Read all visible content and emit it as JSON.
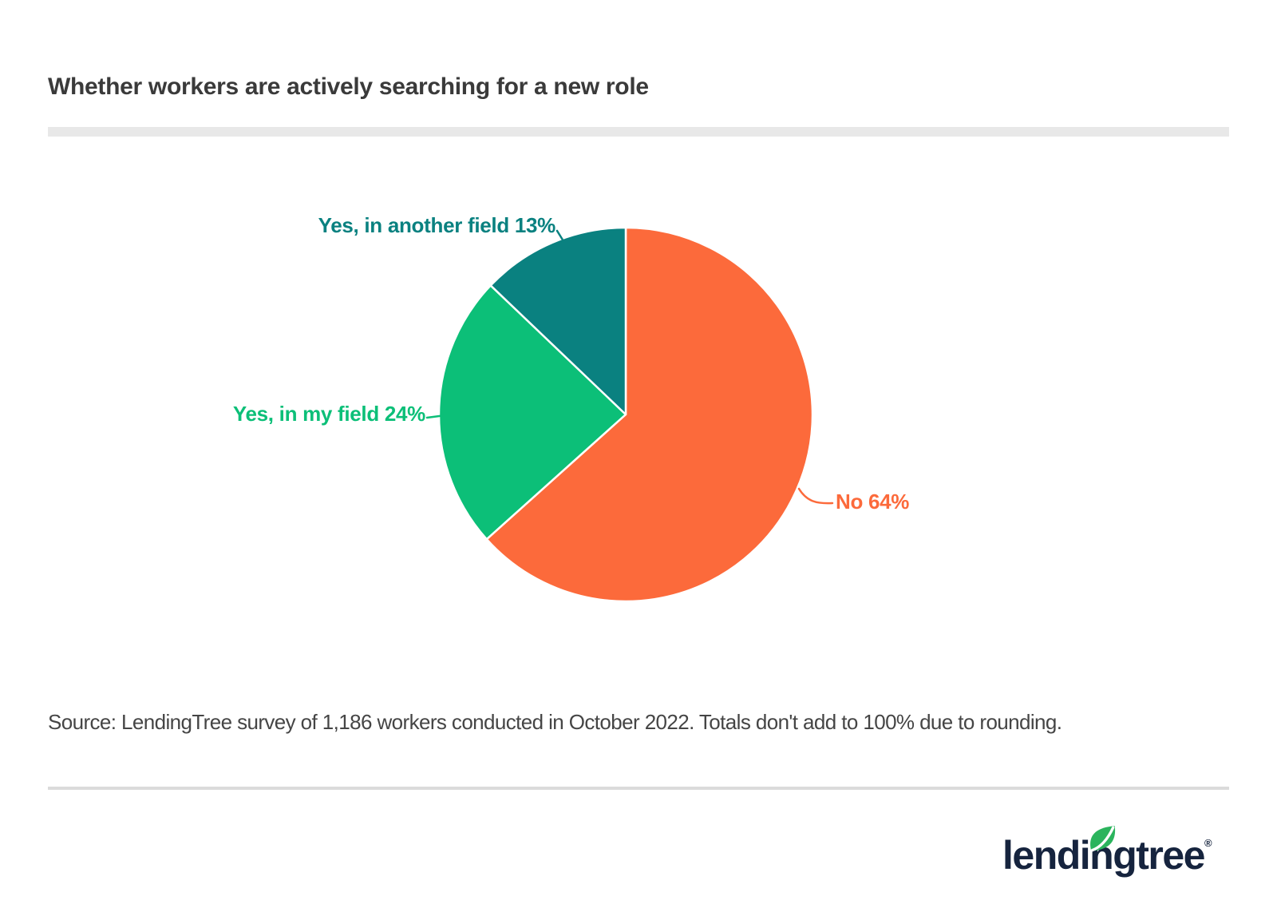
{
  "page": {
    "background_color": "#ffffff"
  },
  "header": {
    "rule_color": "#e8e8e8"
  },
  "chart_data": {
    "type": "pie",
    "title": "Whether workers are actively searching for a new role",
    "direction": "clockwise",
    "start_angle": "12-o-clock",
    "legend_position": "outside-labels-with-leader-lines",
    "slice_gap_color": "#ffffff",
    "slices": [
      {
        "label": "No",
        "value": 64,
        "display_label": "No 64%",
        "color": "#FC6A3B"
      },
      {
        "label": "Yes, in my field",
        "value": 24,
        "display_label": "Yes, in my field 24%",
        "color": "#0CBF78"
      },
      {
        "label": "Yes, in another field",
        "value": 13,
        "display_label": "Yes, in another field 13%",
        "color": "#0A8180"
      }
    ]
  },
  "source": {
    "text": "Source: LendingTree survey of 1,186 workers conducted in October 2022. Totals don't add to 100% due to rounding."
  },
  "footer": {
    "divider_color": "#dbdbdb",
    "logo": {
      "text": "lendingtree",
      "registered_mark": "®",
      "wordmark_color": "#16243e",
      "leaf_color": "#2bb45d"
    }
  }
}
